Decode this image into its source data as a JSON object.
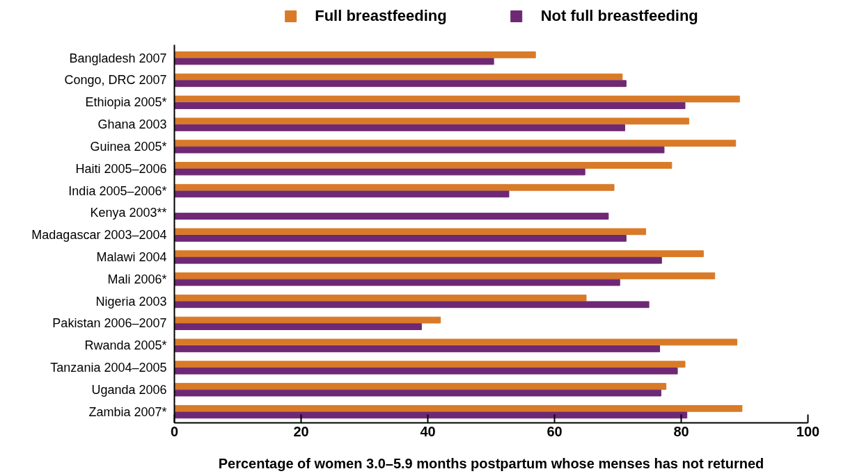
{
  "chart_data": {
    "type": "bar",
    "orientation": "horizontal",
    "xlabel": "Percentage of women 3.0–5.9 months postpartum whose menses has not returned",
    "categories": [
      "Bangladesh 2007",
      "Congo, DRC 2007",
      "Ethiopia 2005*",
      "Ghana 2003",
      "Guinea 2005*",
      "Haiti 2005–2006",
      "India 2005–2006*",
      "Kenya 2003**",
      "Madagascar 2003–2004",
      "Malawi 2004",
      "Mali 2006*",
      "Nigeria 2003",
      "Pakistan 2006–2007",
      "Rwanda 2005*",
      "Tanzania 2004–2005",
      "Uganda 2006",
      "Zambia 2007*"
    ],
    "series": [
      {
        "name": "Full breastfeeding",
        "color": "#d97a28",
        "values": [
          57.0,
          70.7,
          89.2,
          81.2,
          88.6,
          78.5,
          69.4,
          null,
          74.4,
          83.5,
          85.3,
          65.0,
          42.0,
          88.8,
          80.6,
          77.6,
          89.6
        ]
      },
      {
        "name": "Not full breastfeeding",
        "color": "#6e2874",
        "values": [
          50.4,
          71.3,
          80.6,
          71.1,
          77.3,
          64.8,
          52.8,
          68.5,
          71.3,
          76.9,
          70.3,
          74.9,
          39.0,
          76.6,
          79.4,
          76.8,
          80.9
        ]
      }
    ],
    "xlim": [
      0,
      100
    ],
    "xticks": [
      0,
      20,
      40,
      60,
      80,
      100
    ],
    "grid": false,
    "legend": "top"
  }
}
